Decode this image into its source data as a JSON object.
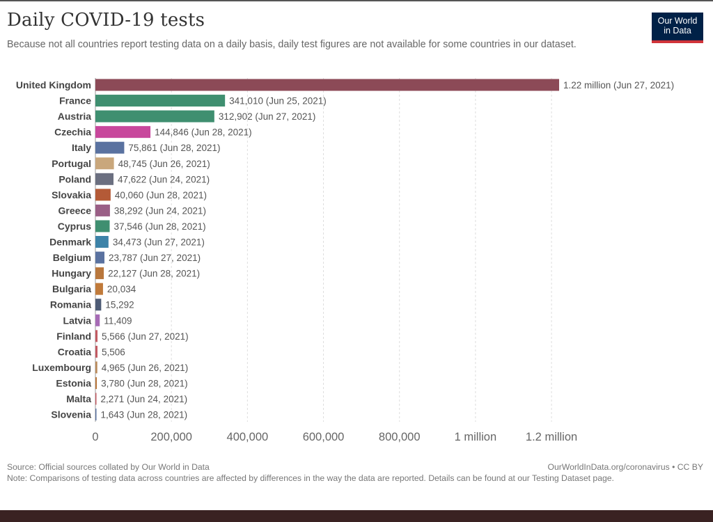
{
  "header": {
    "title": "Daily COVID-19 tests",
    "subtitle": "Because not all countries report testing data on a daily basis, daily test figures are not available for some countries in our dataset."
  },
  "logo": {
    "line1": "Our World",
    "line2": "in Data",
    "bg": "#002147",
    "accent": "#d1343a"
  },
  "footer": {
    "source": "Source: Official sources collated by Our World in Data",
    "license": "OurWorldInData.org/coronavirus • CC BY",
    "note": "Note: Comparisons of testing data across countries are affected by differences in the way the data are reported. Details can be found at our Testing Dataset page."
  },
  "chart_data": {
    "type": "bar",
    "orientation": "horizontal",
    "title": "Daily COVID-19 tests",
    "xlim": [
      0,
      1220000
    ],
    "x_ticks": [
      {
        "value": 0,
        "label": "0"
      },
      {
        "value": 200000,
        "label": "200,000"
      },
      {
        "value": 400000,
        "label": "400,000"
      },
      {
        "value": 600000,
        "label": "600,000"
      },
      {
        "value": 800000,
        "label": "800,000"
      },
      {
        "value": 1000000,
        "label": "1 million"
      },
      {
        "value": 1200000,
        "label": "1.2 million"
      }
    ],
    "grid": true,
    "bars": [
      {
        "country": "United Kingdom",
        "value": 1220000,
        "label": "1.22 million (Jun 27, 2021)",
        "color": "#8c4a57"
      },
      {
        "country": "France",
        "value": 341010,
        "label": "341,010 (Jun 25, 2021)",
        "color": "#3f8f70"
      },
      {
        "country": "Austria",
        "value": 312902,
        "label": "312,902 (Jun 27, 2021)",
        "color": "#3f8f70"
      },
      {
        "country": "Czechia",
        "value": 144846,
        "label": "144,846 (Jun 28, 2021)",
        "color": "#c8479c"
      },
      {
        "country": "Italy",
        "value": 75861,
        "label": "75,861 (Jun 28, 2021)",
        "color": "#5a72a0"
      },
      {
        "country": "Portugal",
        "value": 48745,
        "label": "48,745 (Jun 26, 2021)",
        "color": "#c9a77c"
      },
      {
        "country": "Poland",
        "value": 47622,
        "label": "47,622 (Jun 24, 2021)",
        "color": "#6b6f80"
      },
      {
        "country": "Slovakia",
        "value": 40060,
        "label": "40,060 (Jun 28, 2021)",
        "color": "#b45a37"
      },
      {
        "country": "Greece",
        "value": 38292,
        "label": "38,292 (Jun 24, 2021)",
        "color": "#9a5f86"
      },
      {
        "country": "Cyprus",
        "value": 37546,
        "label": "37,546 (Jun 28, 2021)",
        "color": "#3f8f70"
      },
      {
        "country": "Denmark",
        "value": 34473,
        "label": "34,473 (Jun 27, 2021)",
        "color": "#3d83a8"
      },
      {
        "country": "Belgium",
        "value": 23787,
        "label": "23,787 (Jun 27, 2021)",
        "color": "#5a72a0"
      },
      {
        "country": "Hungary",
        "value": 22127,
        "label": "22,127 (Jun 28, 2021)",
        "color": "#b9773c"
      },
      {
        "country": "Bulgaria",
        "value": 20034,
        "label": "20,034",
        "color": "#c07a3a"
      },
      {
        "country": "Romania",
        "value": 15292,
        "label": "15,292",
        "color": "#4e5b75"
      },
      {
        "country": "Latvia",
        "value": 11409,
        "label": "11,409",
        "color": "#a66bb5"
      },
      {
        "country": "Finland",
        "value": 5566,
        "label": "5,566 (Jun 27, 2021)",
        "color": "#c25a62"
      },
      {
        "country": "Croatia",
        "value": 5506,
        "label": "5,506",
        "color": "#c25a62"
      },
      {
        "country": "Luxembourg",
        "value": 4965,
        "label": "4,965 (Jun 26, 2021)",
        "color": "#b98a5a"
      },
      {
        "country": "Estonia",
        "value": 3780,
        "label": "3,780 (Jun 28, 2021)",
        "color": "#b9773c"
      },
      {
        "country": "Malta",
        "value": 2271,
        "label": "2,271 (Jun 24, 2021)",
        "color": "#c25a62"
      },
      {
        "country": "Slovenia",
        "value": 1643,
        "label": "1,643 (Jun 28, 2021)",
        "color": "#5a72a0"
      }
    ]
  }
}
